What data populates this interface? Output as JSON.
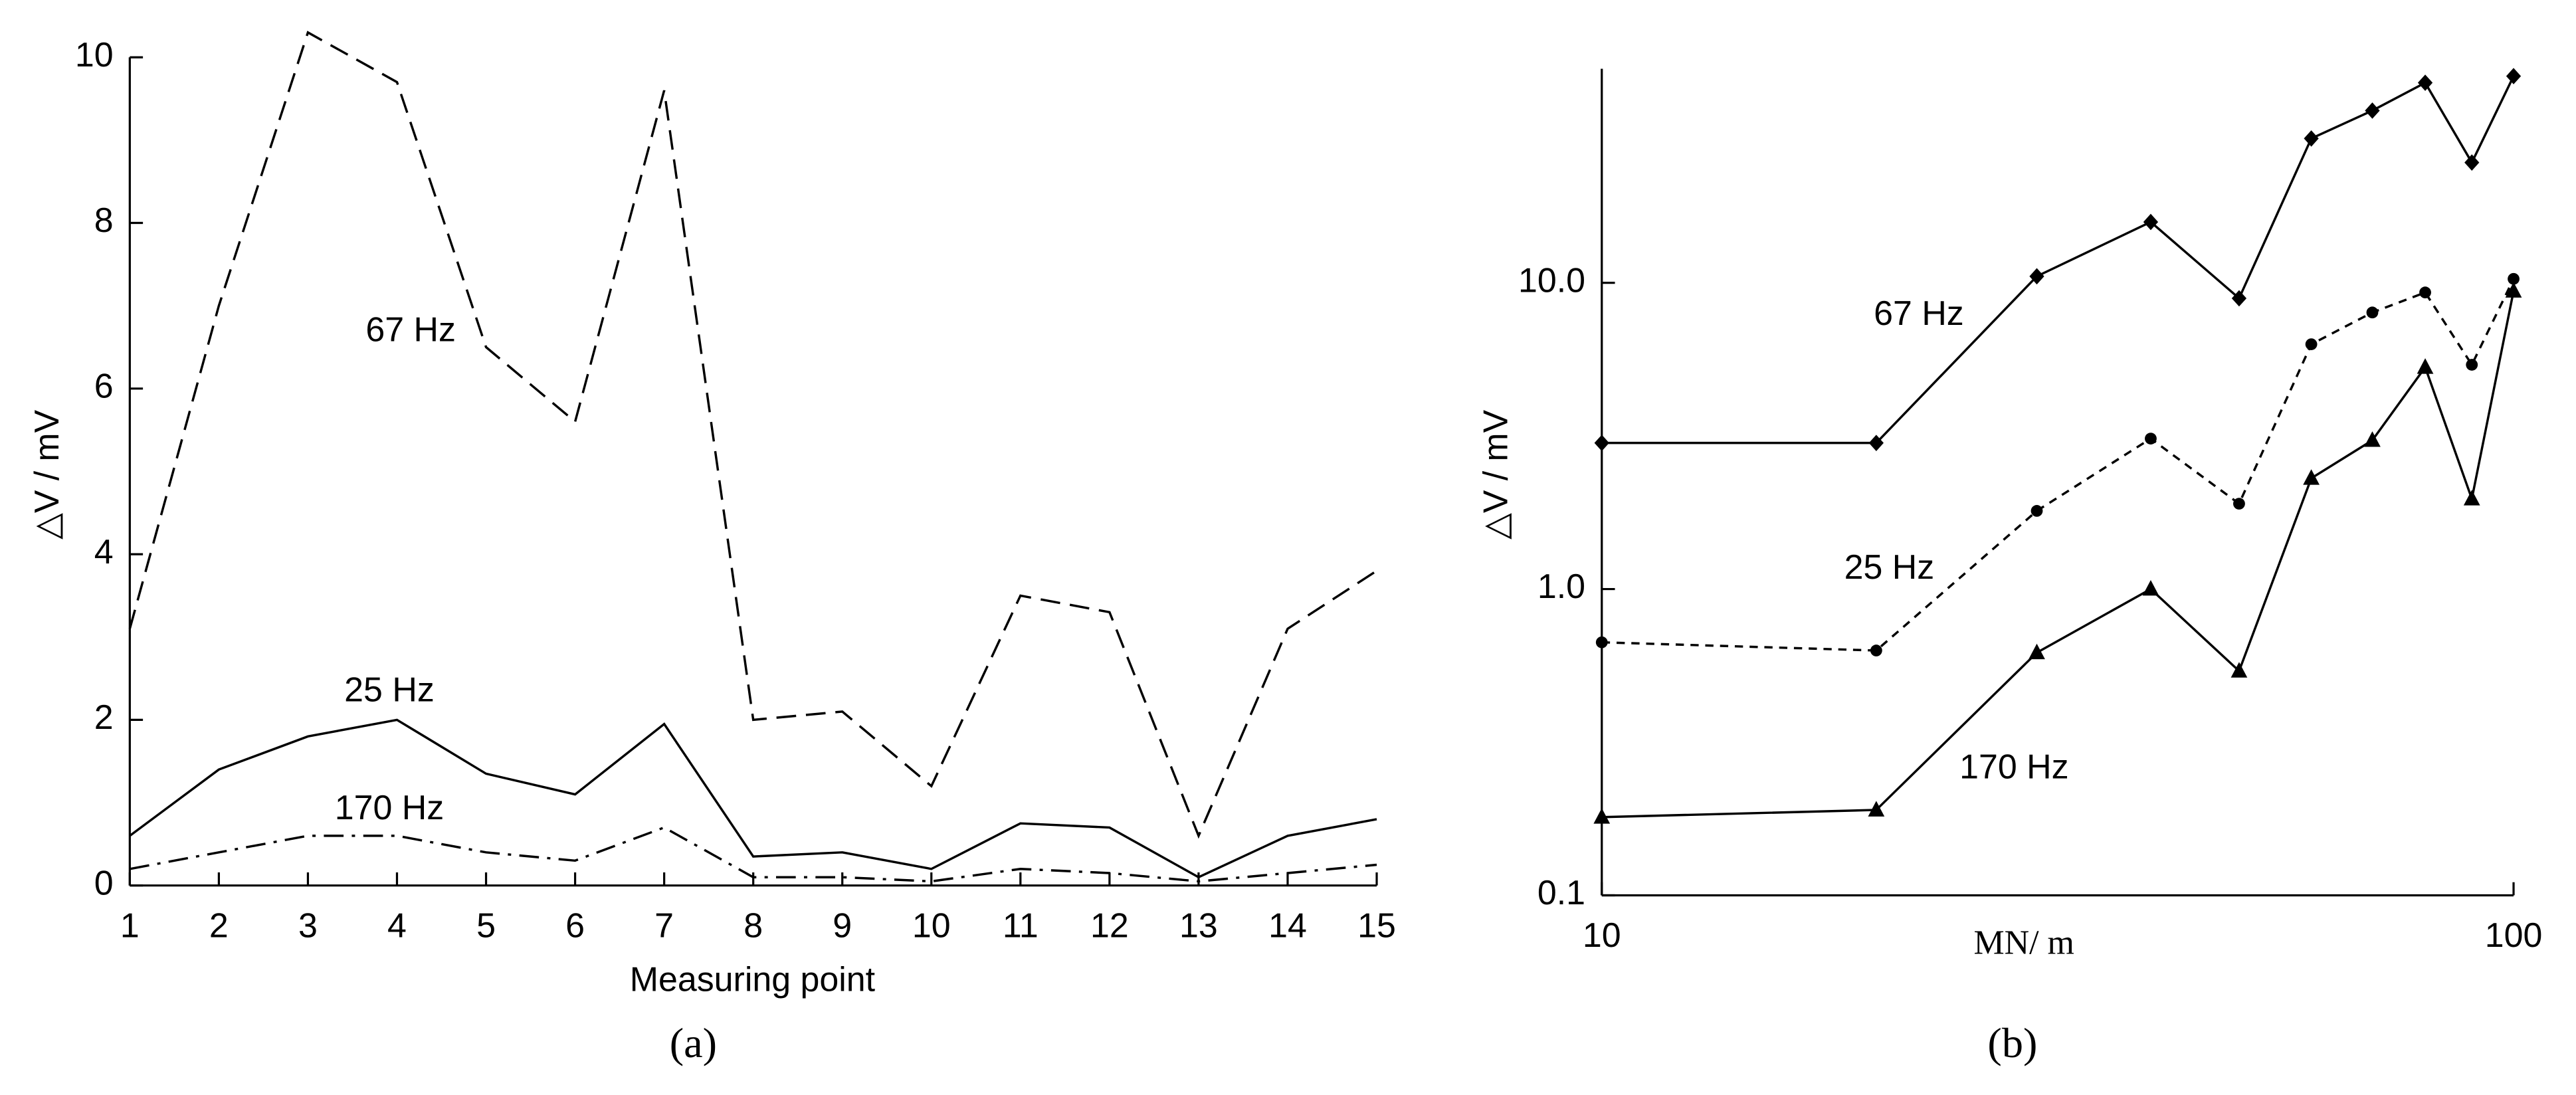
{
  "chart_data": [
    {
      "type": "line",
      "caption": "(a)",
      "xlabel": "Measuring point",
      "ylabel": "△V / mV",
      "x": [
        1,
        2,
        3,
        4,
        5,
        6,
        7,
        8,
        9,
        10,
        11,
        12,
        13,
        14,
        15
      ],
      "xlim": [
        1,
        15
      ],
      "xticks": [
        1,
        2,
        3,
        4,
        5,
        6,
        7,
        8,
        9,
        10,
        11,
        12,
        13,
        14,
        15
      ],
      "ylim": [
        0,
        10
      ],
      "yticks": [
        0,
        2,
        4,
        6,
        8,
        10
      ],
      "series": [
        {
          "name": "67 Hz",
          "color": "#000000",
          "style": "dashed",
          "values": [
            3.1,
            7.0,
            10.3,
            9.7,
            6.5,
            5.6,
            9.6,
            2.0,
            2.1,
            1.2,
            3.5,
            3.3,
            0.6,
            3.1,
            3.8
          ]
        },
        {
          "name": "25 Hz",
          "color": "#000000",
          "style": "solid",
          "values": [
            0.6,
            1.4,
            1.8,
            2.0,
            1.35,
            1.1,
            1.95,
            0.35,
            0.4,
            0.2,
            0.75,
            0.7,
            0.1,
            0.6,
            0.8
          ]
        },
        {
          "name": "170 Hz",
          "color": "#000000",
          "style": "dashdot",
          "values": [
            0.2,
            0.4,
            0.6,
            0.6,
            0.4,
            0.3,
            0.7,
            0.1,
            0.1,
            0.05,
            0.2,
            0.15,
            0.05,
            0.15,
            0.25
          ]
        }
      ]
    },
    {
      "type": "line",
      "caption": "(b)",
      "xlabel": "MN/ m",
      "ylabel": "△V / mV",
      "xscale": "log",
      "yscale": "log",
      "x": [
        10,
        20,
        30,
        40,
        50,
        60,
        70,
        80,
        90,
        100
      ],
      "xlim": [
        10,
        100
      ],
      "xticks": [
        10,
        100
      ],
      "ylim": [
        0.1,
        50
      ],
      "yticks": [
        0.1,
        {
          "value": 1,
          "label": "1.0"
        },
        {
          "value": 10,
          "label": "10.0"
        }
      ],
      "series": [
        {
          "name": "67 Hz",
          "color": "#000000",
          "style": "solid",
          "marker": "diamond",
          "values": [
            3.0,
            3.0,
            10.5,
            15.8,
            8.9,
            29.6,
            36.5,
            45,
            24.7,
            47.3
          ]
        },
        {
          "name": "25 Hz",
          "color": "#000000",
          "style": "dashed",
          "marker": "circle",
          "values": [
            0.67,
            0.63,
            1.8,
            3.1,
            1.9,
            6.3,
            8.0,
            9.3,
            5.4,
            10.3
          ]
        },
        {
          "name": "170 Hz",
          "color": "#000000",
          "style": "solid",
          "marker": "triangle",
          "values": [
            0.18,
            0.19,
            0.62,
            1.0,
            0.54,
            2.3,
            3.06,
            5.3,
            1.97,
            9.4
          ]
        }
      ]
    }
  ]
}
